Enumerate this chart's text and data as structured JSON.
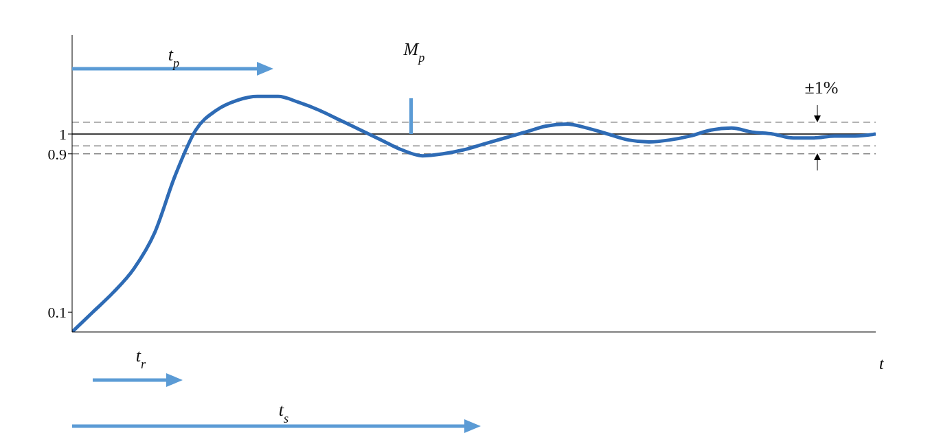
{
  "chart_data": {
    "type": "line",
    "xlabel": "t",
    "categories": [
      null,
      null,
      null,
      null,
      null,
      null,
      null,
      null,
      null,
      null,
      null,
      null,
      null,
      null,
      null,
      null,
      null,
      null,
      null,
      null,
      null,
      null,
      null,
      null,
      null,
      null,
      null,
      null,
      null,
      null,
      null,
      null,
      null,
      null,
      null,
      null,
      null,
      null,
      null,
      null
    ],
    "series": [
      {
        "color": "#2e6bb5",
        "values": [
          0,
          0.1,
          0.2,
          0.32,
          0.5,
          0.79,
          1.02,
          1.12,
          1.17,
          1.19,
          1.19,
          1.16,
          1.12,
          1.07,
          1.02,
          0.97,
          0.92,
          0.89,
          0.9,
          0.92,
          0.95,
          0.98,
          1.01,
          1.04,
          1.05,
          1.03,
          1.0,
          0.97,
          0.96,
          0.97,
          0.99,
          1.02,
          1.03,
          1.01,
          1.0,
          0.98,
          0.98,
          0.99,
          0.99,
          1.0
        ]
      }
    ],
    "ylim": [
      0,
      1.5
    ],
    "yticks": [
      0.1,
      0.9,
      1
    ],
    "tick_labels": "y",
    "marker": "none",
    "line_style": "solid",
    "ref_lines": [
      {
        "axis": "y",
        "value": 1,
        "color": "#000000",
        "line_style": "solid"
      },
      {
        "axis": "y",
        "value": 0.9,
        "color": "#888888",
        "line_style": "dashed"
      },
      {
        "axis": "y",
        "value": 1.06,
        "color": "#888888",
        "line_style": "dashed"
      },
      {
        "axis": "y",
        "value": 0.94,
        "color": "#888888",
        "line_style": "dashed"
      }
    ],
    "annotations": [
      "t$_{p}$",
      "M$_{p}$",
      "±1%",
      "t$_{r}$",
      "t$_{s}$"
    ]
  }
}
